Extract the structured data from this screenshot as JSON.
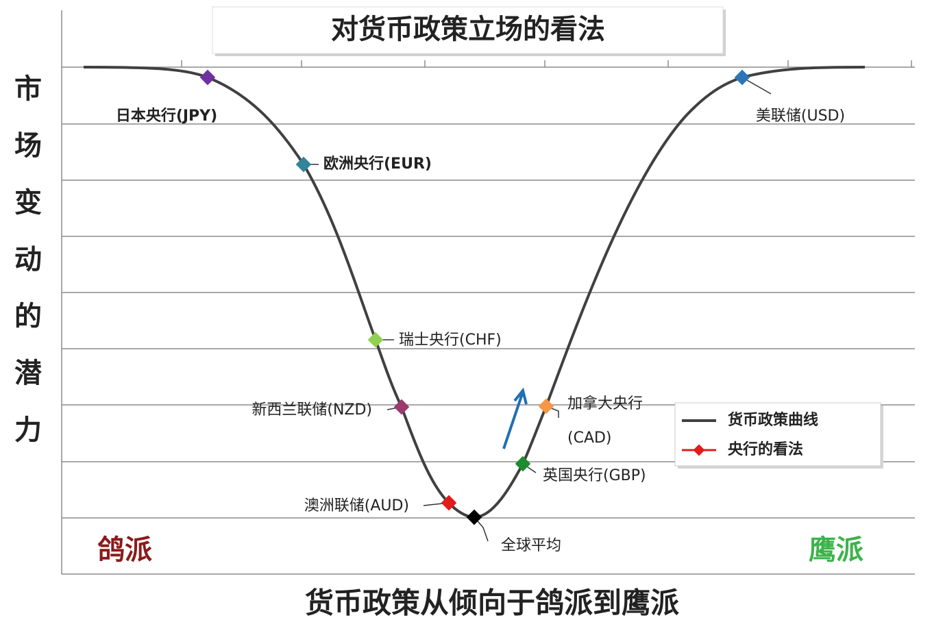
{
  "header": {
    "title": "对货币政策立场的看法"
  },
  "axes": {
    "y_label": "市场变动的潜力",
    "x_label": "货币政策从倾向于鸽派到鹰派"
  },
  "sides": {
    "left": "鸽派",
    "right": "鹰派"
  },
  "nodes": [
    {
      "label": "日本央行(JPY)"
    },
    {
      "label": "欧洲央行(EUR)"
    },
    {
      "label": "瑞士央行(CHF)"
    },
    {
      "label": "新西兰联储(NZD)"
    },
    {
      "label": "澳洲联储(AUD)"
    },
    {
      "label": "全球平均"
    },
    {
      "label": "英国央行(GBP)"
    },
    {
      "label": "加拿大央行",
      "sublabel": "(CAD)"
    },
    {
      "label": "美联储(USD)"
    }
  ],
  "legend": {
    "items": [
      "货币政策曲线",
      "央行的看法"
    ]
  }
}
